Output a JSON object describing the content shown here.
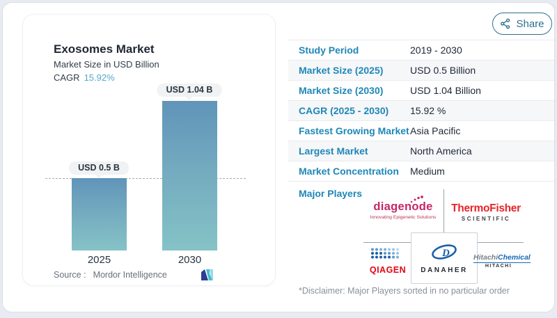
{
  "share_button": {
    "label": "Share"
  },
  "chart_panel": {
    "title": "Exosomes Market",
    "subtitle": "Market Size in USD Billion",
    "cagr_label": "CAGR",
    "cagr_value": "15.92%",
    "source_label": "Source :",
    "source_name": "Mordor Intelligence"
  },
  "chart_data": {
    "type": "bar",
    "title": "Exosomes Market",
    "subtitle": "Market Size in USD Billion",
    "unit": "USD Billion",
    "categories": [
      "2025",
      "2030"
    ],
    "values": [
      0.5,
      1.04
    ],
    "bar_labels": [
      "USD 0.5 B",
      "USD 1.04 B"
    ],
    "cagr_percent": 15.92,
    "reference_line": 0.5,
    "ylim": [
      0,
      1.1
    ],
    "grid": false,
    "source": "Mordor Intelligence"
  },
  "facts_table": {
    "rows": [
      {
        "label": "Study Period",
        "value": "2019 - 2030"
      },
      {
        "label": "Market Size (2025)",
        "value": "USD 0.5 Billion"
      },
      {
        "label": "Market Size (2030)",
        "value": "USD 1.04 Billion"
      },
      {
        "label": "CAGR (2025 - 2030)",
        "value": "15.92 %"
      },
      {
        "label": "Fastest Growing Market",
        "value": "Asia Pacific"
      },
      {
        "label": "Largest Market",
        "value": "North America"
      },
      {
        "label": "Market Concentration",
        "value": "Medium"
      }
    ]
  },
  "major_players": {
    "section_label": "Major Players",
    "players": [
      "Diagenode",
      "Thermo Fisher Scientific",
      "QIAGEN",
      "Danaher",
      "Hitachi Chemical"
    ],
    "logos": {
      "diagenode": {
        "name": "diagenode",
        "tagline": "Innovating Epigenetic Solutions"
      },
      "thermo_fisher": {
        "name": "ThermoFisher",
        "sub": "SCIENTIFIC"
      },
      "qiagen": {
        "name": "QIAGEN"
      },
      "danaher": {
        "name": "DANAHER"
      },
      "hitachi_chemical": {
        "name_a": "Hitachi",
        "name_b": "Chemical",
        "sub": "HITACHI"
      }
    }
  },
  "disclaimer": "*Disclaimer: Major Players sorted in no particular order",
  "colors": {
    "accent_label_blue": "#1e87b8",
    "cagr_value_blue": "#52a9cb",
    "bar_gradient_top": "#6094b9",
    "bar_gradient_bottom": "#85c3c6",
    "thermo_red": "#e8232a",
    "diagenode_magenta": "#c42766",
    "qiagen_red": "#e20613",
    "hitachi_blue": "#1767b1"
  }
}
